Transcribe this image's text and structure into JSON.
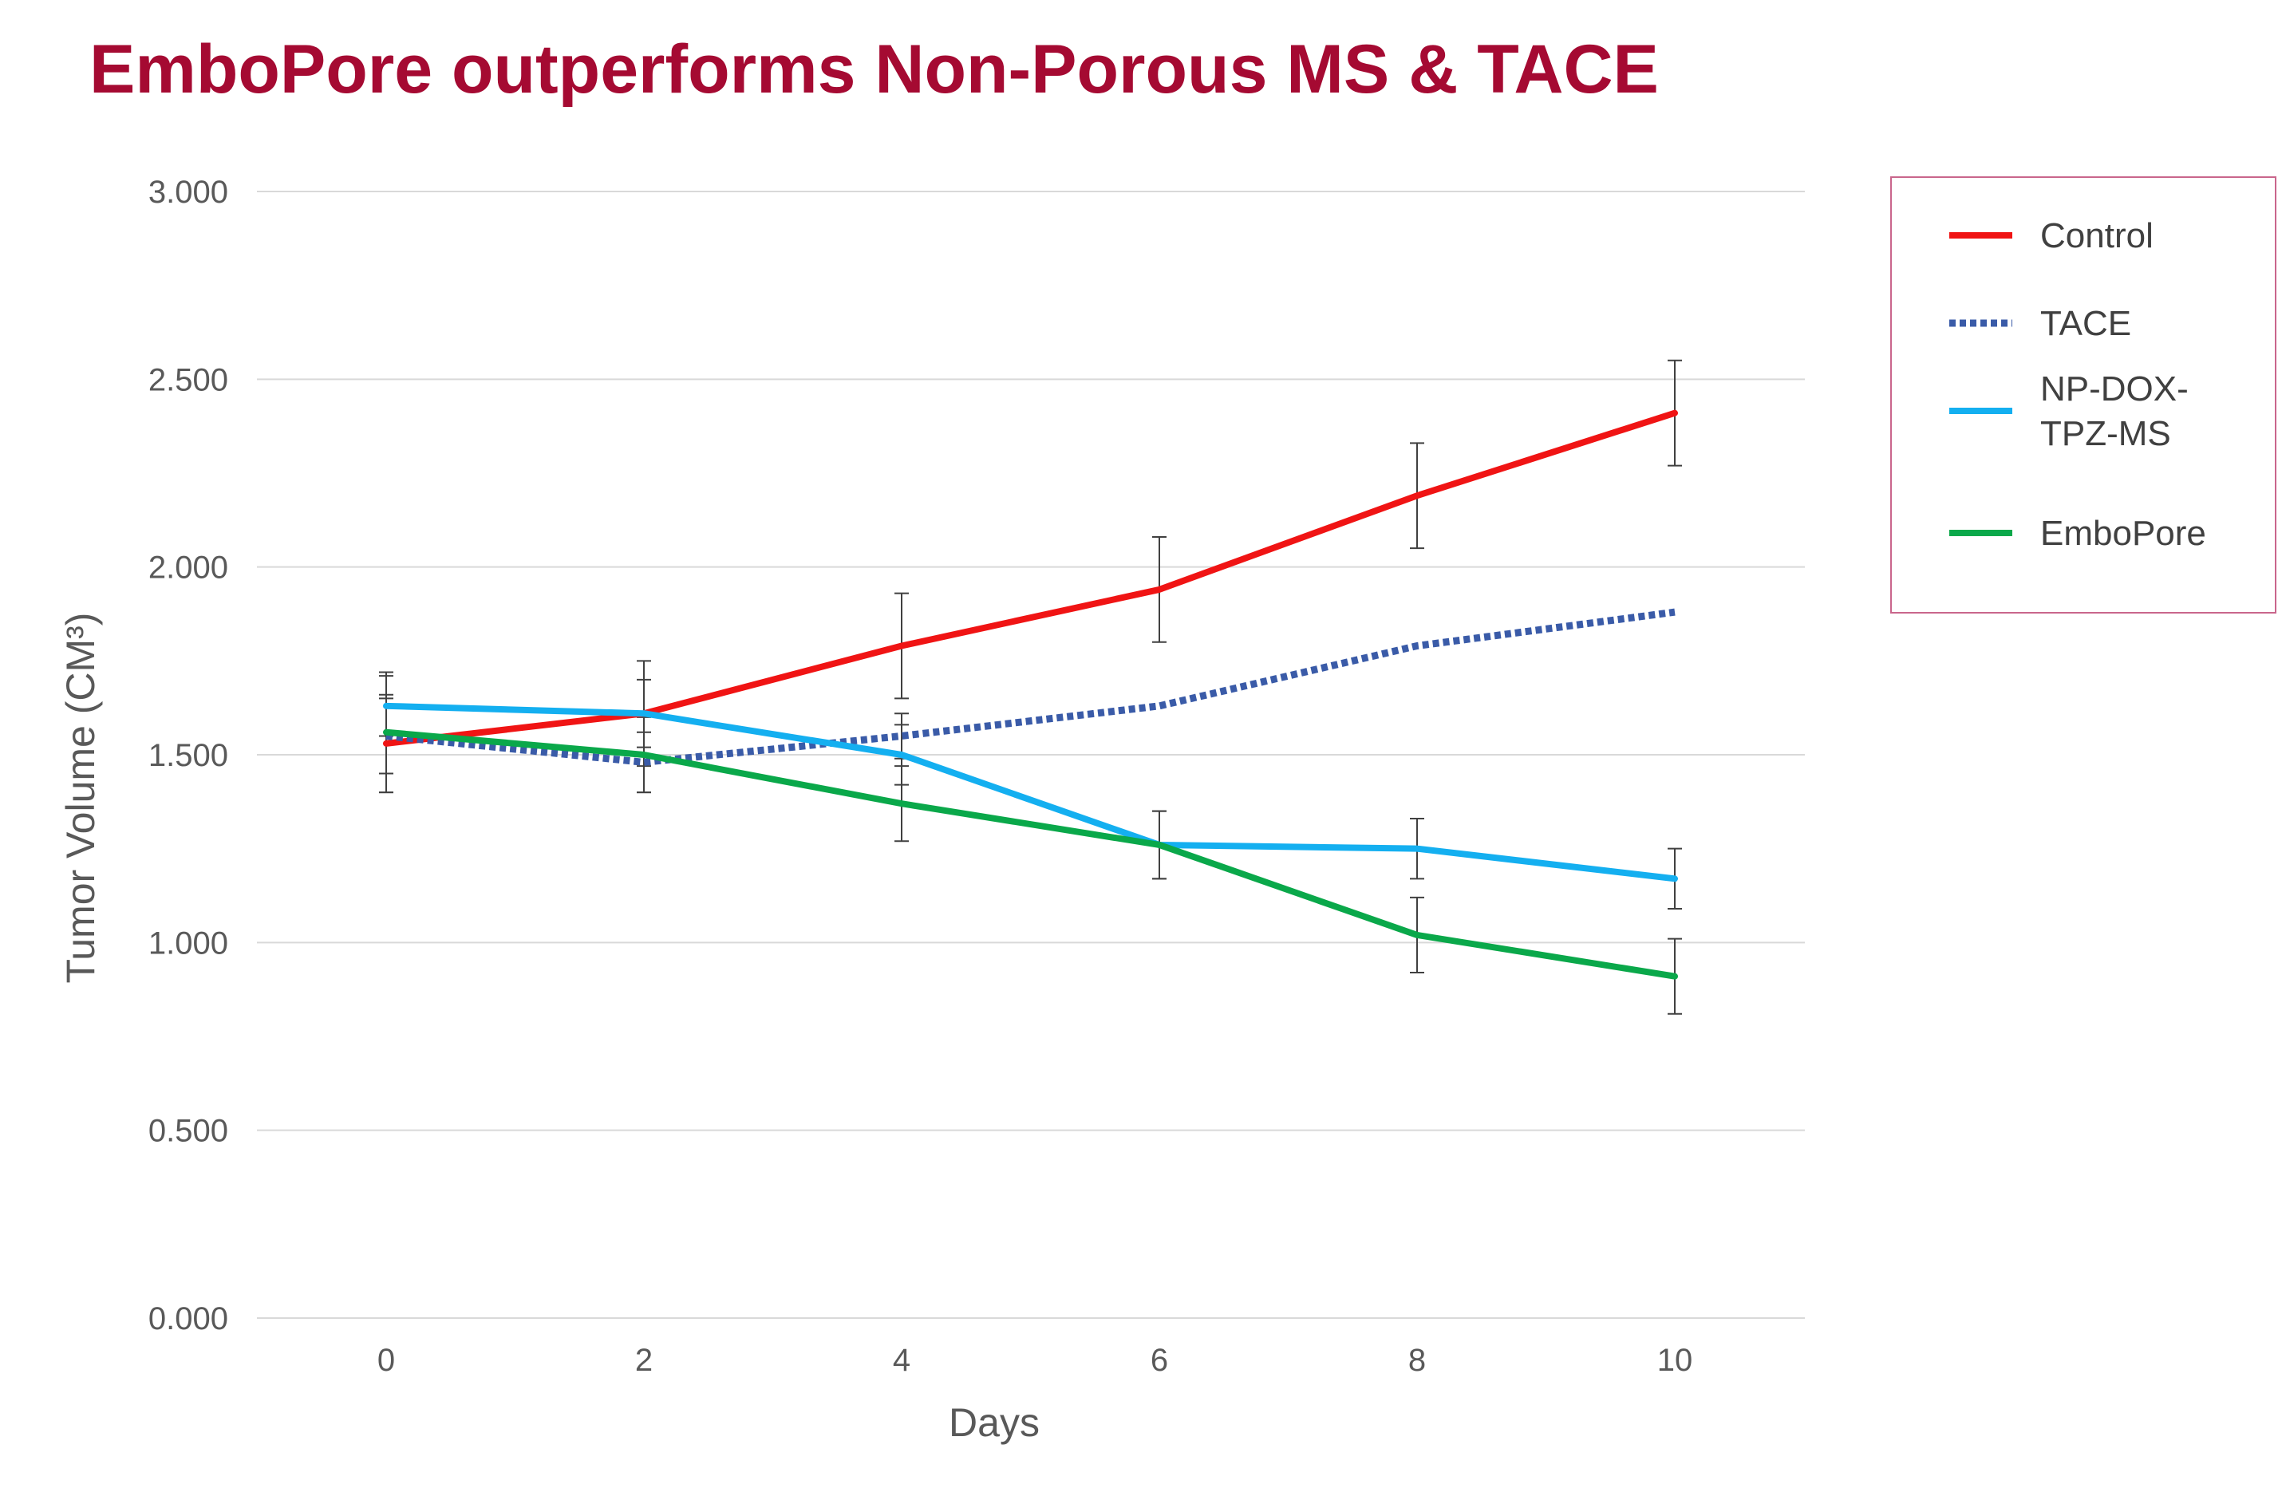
{
  "title": "EmboPore outperforms Non-Porous MS & TACE",
  "chart_data": {
    "type": "line",
    "title": "EmboPore outperforms Non-Porous MS & TACE",
    "xlabel": "Days",
    "ylabel": "Tumor Volume (CM³)",
    "x": [
      0,
      2,
      4,
      6,
      8,
      10
    ],
    "x_tick_labels": [
      "0",
      "2",
      "4",
      "6",
      "8",
      "10"
    ],
    "ylim": [
      0,
      3
    ],
    "y_ticks": [
      0,
      0.5,
      1,
      1.5,
      2,
      2.5,
      3
    ],
    "y_tick_labels": [
      "0.000",
      "0.500",
      "1.000",
      "1.500",
      "2.000",
      "2.500",
      "3.000"
    ],
    "grid": true,
    "legend_position": "right",
    "series": [
      {
        "name": "Control",
        "color": "#f01414",
        "style": "solid",
        "values": [
          1.53,
          1.61,
          1.79,
          1.94,
          2.19,
          2.41
        ],
        "error": [
          0.13,
          0.14,
          0.14,
          0.14,
          0.14,
          0.14
        ]
      },
      {
        "name": "TACE",
        "color": "#3a5ba8",
        "style": "dotted",
        "values": [
          1.55,
          1.48,
          1.55,
          1.63,
          1.79,
          1.88
        ],
        "error": [
          0.1,
          0.08,
          0.06,
          0.0,
          0.0,
          0.0
        ]
      },
      {
        "name": "NP-DOX-TPZ-MS",
        "color": "#14aff0",
        "style": "solid",
        "values": [
          1.63,
          1.61,
          1.5,
          1.26,
          1.25,
          1.17
        ],
        "error": [
          0.08,
          0.09,
          0.08,
          0.09,
          0.08,
          0.08
        ]
      },
      {
        "name": "EmboPore",
        "color": "#0aa84a",
        "style": "solid",
        "values": [
          1.56,
          1.5,
          1.37,
          1.26,
          1.02,
          0.91
        ],
        "error": [
          0.16,
          0.1,
          0.1,
          0.09,
          0.1,
          0.1
        ]
      }
    ],
    "legend": {
      "entries": [
        {
          "lines": [
            "Control"
          ]
        },
        {
          "lines": [
            "TACE"
          ]
        },
        {
          "lines": [
            "NP-DOX-",
            "TPZ-MS"
          ]
        },
        {
          "lines": [
            "EmboPore"
          ]
        }
      ],
      "border_color": "#c9668c"
    }
  }
}
